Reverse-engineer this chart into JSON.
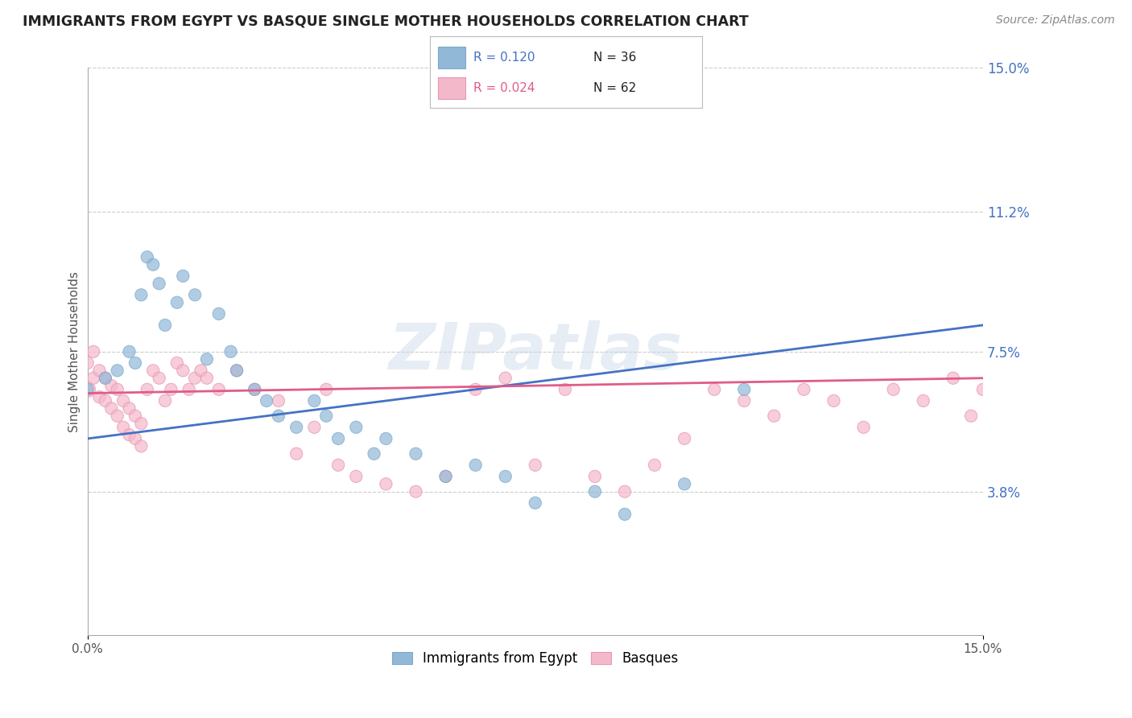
{
  "title": "IMMIGRANTS FROM EGYPT VS BASQUE SINGLE MOTHER HOUSEHOLDS CORRELATION CHART",
  "source": "Source: ZipAtlas.com",
  "ylabel": "Single Mother Households",
  "xlim": [
    0.0,
    0.15
  ],
  "ylim": [
    0.0,
    0.15
  ],
  "ytick_labels": [
    "3.8%",
    "7.5%",
    "11.2%",
    "15.0%"
  ],
  "ytick_values": [
    0.038,
    0.075,
    0.112,
    0.15
  ],
  "grid_color": "#cccccc",
  "background_color": "#ffffff",
  "blue_color": "#92b8d8",
  "pink_color": "#f4b8cb",
  "blue_edge_color": "#7aaac8",
  "pink_edge_color": "#e896b0",
  "blue_line_color": "#4472c4",
  "pink_line_color": "#e05c8a",
  "legend_R_blue": "0.120",
  "legend_N_blue": "36",
  "legend_R_pink": "0.024",
  "legend_N_pink": "62",
  "blue_scatter_x": [
    0.0,
    0.003,
    0.005,
    0.007,
    0.008,
    0.009,
    0.01,
    0.011,
    0.012,
    0.013,
    0.015,
    0.016,
    0.018,
    0.02,
    0.022,
    0.024,
    0.025,
    0.028,
    0.03,
    0.032,
    0.035,
    0.038,
    0.04,
    0.042,
    0.045,
    0.048,
    0.05,
    0.055,
    0.06,
    0.065,
    0.07,
    0.075,
    0.085,
    0.09,
    0.1,
    0.11
  ],
  "blue_scatter_y": [
    0.065,
    0.068,
    0.07,
    0.075,
    0.072,
    0.09,
    0.1,
    0.098,
    0.093,
    0.082,
    0.088,
    0.095,
    0.09,
    0.073,
    0.085,
    0.075,
    0.07,
    0.065,
    0.062,
    0.058,
    0.055,
    0.062,
    0.058,
    0.052,
    0.055,
    0.048,
    0.052,
    0.048,
    0.042,
    0.045,
    0.042,
    0.035,
    0.038,
    0.032,
    0.04,
    0.065
  ],
  "pink_scatter_x": [
    0.0,
    0.0,
    0.001,
    0.001,
    0.002,
    0.002,
    0.003,
    0.003,
    0.004,
    0.004,
    0.005,
    0.005,
    0.006,
    0.006,
    0.007,
    0.007,
    0.008,
    0.008,
    0.009,
    0.009,
    0.01,
    0.011,
    0.012,
    0.013,
    0.014,
    0.015,
    0.016,
    0.017,
    0.018,
    0.019,
    0.02,
    0.022,
    0.025,
    0.028,
    0.032,
    0.035,
    0.038,
    0.04,
    0.042,
    0.045,
    0.05,
    0.055,
    0.06,
    0.065,
    0.07,
    0.075,
    0.08,
    0.085,
    0.09,
    0.095,
    0.1,
    0.105,
    0.11,
    0.115,
    0.12,
    0.125,
    0.13,
    0.135,
    0.14,
    0.145,
    0.148,
    0.15
  ],
  "pink_scatter_y": [
    0.065,
    0.072,
    0.068,
    0.075,
    0.063,
    0.07,
    0.062,
    0.068,
    0.06,
    0.066,
    0.058,
    0.065,
    0.055,
    0.062,
    0.053,
    0.06,
    0.052,
    0.058,
    0.05,
    0.056,
    0.065,
    0.07,
    0.068,
    0.062,
    0.065,
    0.072,
    0.07,
    0.065,
    0.068,
    0.07,
    0.068,
    0.065,
    0.07,
    0.065,
    0.062,
    0.048,
    0.055,
    0.065,
    0.045,
    0.042,
    0.04,
    0.038,
    0.042,
    0.065,
    0.068,
    0.045,
    0.065,
    0.042,
    0.038,
    0.045,
    0.052,
    0.065,
    0.062,
    0.058,
    0.065,
    0.062,
    0.055,
    0.065,
    0.062,
    0.068,
    0.058,
    0.065
  ],
  "pink_scatter_size_large": 200,
  "dot_size": 120,
  "blue_line_x": [
    0.0,
    0.15
  ],
  "blue_line_y_start": 0.052,
  "blue_line_y_end": 0.082,
  "pink_line_x": [
    0.0,
    0.15
  ],
  "pink_line_y_start": 0.064,
  "pink_line_y_end": 0.068
}
